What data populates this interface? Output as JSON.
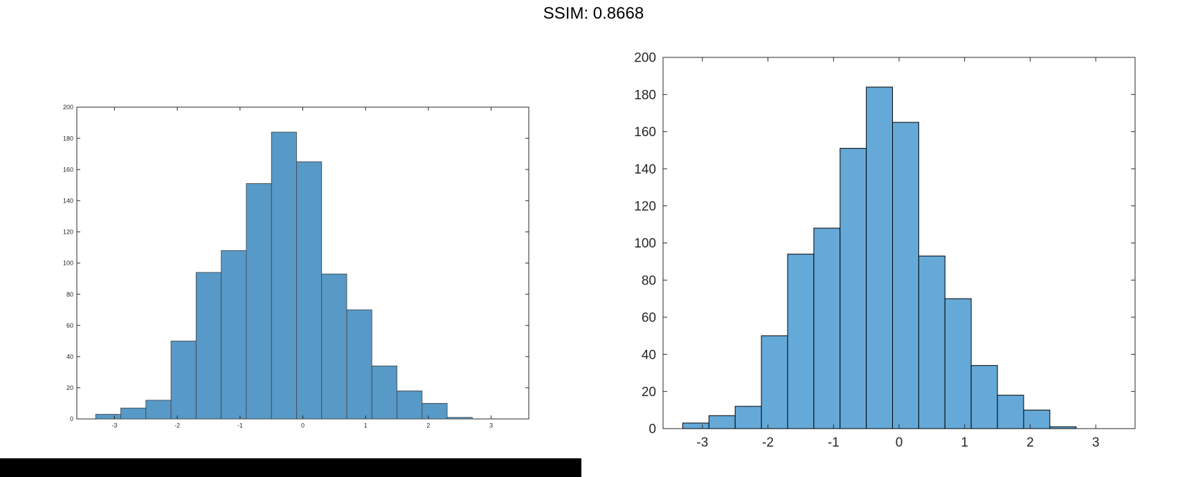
{
  "page": {
    "title": "SSIM: 0.8668"
  },
  "colors": {
    "bar_fill_left": "#5799c7",
    "bar_edge_left": "#3f3f3f",
    "bar_fill_right": "#64a9d8",
    "bar_edge_right": "#000000",
    "axis": "#262626"
  },
  "chart_data": [
    {
      "type": "bar",
      "name": "left-histogram",
      "bin_edges": [
        -3.3,
        -2.9,
        -2.5,
        -2.1,
        -1.7,
        -1.3,
        -0.9,
        -0.5,
        -0.1,
        0.3,
        0.7,
        1.1,
        1.5,
        1.9,
        2.3,
        2.7,
        3.1
      ],
      "values": [
        3,
        7,
        12,
        50,
        94,
        108,
        151,
        184,
        165,
        93,
        70,
        34,
        18,
        10,
        1,
        0
      ],
      "xlim": [
        -3.6,
        3.6
      ],
      "ylim": [
        0,
        200
      ],
      "xticks": [
        -3,
        -2,
        -1,
        0,
        1,
        2,
        3
      ],
      "xtick_labels": [
        "-3",
        "-2",
        "-1",
        "0",
        "1",
        "2",
        "3"
      ],
      "yticks": [
        0,
        20,
        40,
        60,
        80,
        100,
        120,
        140,
        160,
        180,
        200
      ],
      "ytick_labels": [
        "0",
        "20",
        "40",
        "60",
        "80",
        "100",
        "120",
        "140",
        "160",
        "180",
        "200"
      ],
      "grid": false
    },
    {
      "type": "bar",
      "name": "right-histogram",
      "bin_edges": [
        -3.3,
        -2.9,
        -2.5,
        -2.1,
        -1.7,
        -1.3,
        -0.9,
        -0.5,
        -0.1,
        0.3,
        0.7,
        1.1,
        1.5,
        1.9,
        2.3,
        2.7,
        3.1
      ],
      "values": [
        3,
        7,
        12,
        50,
        94,
        108,
        151,
        184,
        165,
        93,
        70,
        34,
        18,
        10,
        1,
        0
      ],
      "xlim": [
        -3.6,
        3.6
      ],
      "ylim": [
        0,
        200
      ],
      "xticks": [
        -3,
        -2,
        -1,
        0,
        1,
        2,
        3
      ],
      "xtick_labels": [
        "-3",
        "-2",
        "-1",
        "0",
        "1",
        "2",
        "3"
      ],
      "yticks": [
        0,
        20,
        40,
        60,
        80,
        100,
        120,
        140,
        160,
        180,
        200
      ],
      "ytick_labels": [
        "0",
        "20",
        "40",
        "60",
        "80",
        "100",
        "120",
        "140",
        "160",
        "180",
        "200"
      ],
      "grid": false
    }
  ]
}
